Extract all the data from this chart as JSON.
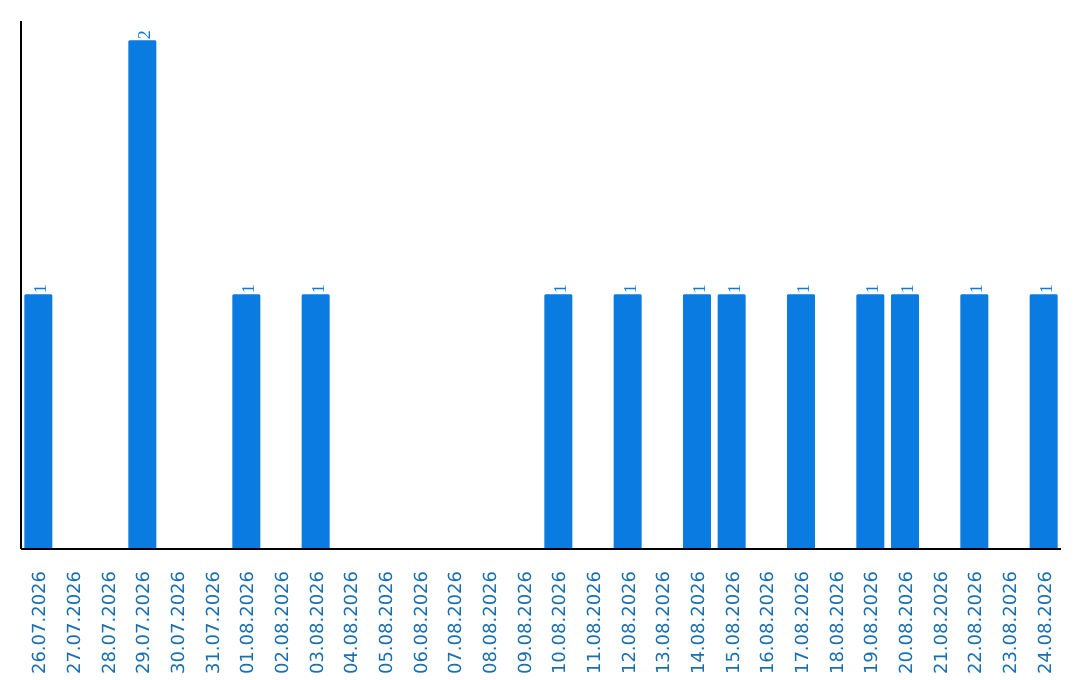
{
  "chart_data": {
    "type": "bar",
    "categories": [
      "26.07.2026",
      "27.07.2026",
      "28.07.2026",
      "29.07.2026",
      "30.07.2026",
      "31.07.2026",
      "01.08.2026",
      "02.08.2026",
      "03.08.2026",
      "04.08.2026",
      "05.08.2026",
      "06.08.2026",
      "07.08.2026",
      "08.08.2026",
      "09.08.2026",
      "10.08.2026",
      "11.08.2026",
      "12.08.2026",
      "13.08.2026",
      "14.08.2026",
      "15.08.2026",
      "16.08.2026",
      "17.08.2026",
      "18.08.2026",
      "19.08.2026",
      "20.08.2026",
      "21.08.2026",
      "22.08.2026",
      "23.08.2026",
      "24.08.2026"
    ],
    "values": [
      1,
      0,
      0,
      2,
      0,
      0,
      1,
      0,
      1,
      0,
      0,
      0,
      0,
      0,
      0,
      1,
      0,
      1,
      0,
      1,
      1,
      0,
      1,
      0,
      1,
      1,
      0,
      1,
      0,
      1
    ],
    "value_labels": [
      "1",
      null,
      null,
      "2",
      null,
      null,
      "1",
      null,
      "1",
      null,
      null,
      null,
      null,
      null,
      null,
      "1",
      null,
      "1",
      null,
      "1",
      "1",
      null,
      "1",
      null,
      "1",
      "1",
      null,
      "1",
      null,
      "1"
    ],
    "color": "#0a7be0",
    "grid": false
  }
}
